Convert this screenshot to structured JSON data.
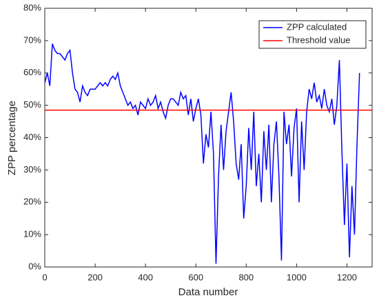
{
  "chart_data": {
    "type": "line",
    "xlabel": "Data number",
    "ylabel": "ZPP percentage",
    "xlim": [
      0,
      1300
    ],
    "xticks": [
      0,
      200,
      400,
      600,
      800,
      1000,
      1200
    ],
    "ylim": [
      0,
      80
    ],
    "yticks": [
      {
        "value": 0,
        "label": "0%"
      },
      {
        "value": 10,
        "label": "10%"
      },
      {
        "value": 20,
        "label": "20%"
      },
      {
        "value": 30,
        "label": "30%"
      },
      {
        "value": 40,
        "label": "40%"
      },
      {
        "value": 50,
        "label": "50%"
      },
      {
        "value": 60,
        "label": "60%"
      },
      {
        "value": 70,
        "label": "70%"
      },
      {
        "value": 80,
        "label": "80%"
      }
    ],
    "legend": "top-right",
    "series": [
      {
        "name": "ZPP calculated",
        "color": "#0000ff",
        "x": [
          0,
          10,
          20,
          30,
          40,
          50,
          60,
          70,
          80,
          90,
          100,
          110,
          120,
          130,
          140,
          150,
          160,
          170,
          180,
          190,
          200,
          210,
          220,
          230,
          240,
          250,
          260,
          270,
          280,
          290,
          300,
          310,
          320,
          330,
          340,
          350,
          360,
          370,
          380,
          390,
          400,
          410,
          420,
          430,
          440,
          450,
          460,
          470,
          480,
          490,
          500,
          510,
          520,
          530,
          540,
          550,
          560,
          570,
          580,
          590,
          600,
          610,
          620,
          630,
          640,
          650,
          660,
          670,
          680,
          690,
          700,
          710,
          720,
          730,
          740,
          750,
          760,
          770,
          780,
          790,
          800,
          810,
          820,
          830,
          840,
          850,
          860,
          870,
          880,
          890,
          900,
          910,
          920,
          930,
          940,
          950,
          960,
          970,
          980,
          990,
          1000,
          1010,
          1020,
          1030,
          1040,
          1050,
          1060,
          1070,
          1080,
          1090,
          1100,
          1110,
          1120,
          1130,
          1140,
          1150,
          1160,
          1170,
          1180,
          1190,
          1200,
          1210,
          1220,
          1230,
          1240,
          1250
        ],
        "values": [
          57,
          60,
          56,
          69,
          67,
          66,
          66,
          65,
          64,
          66,
          67,
          60,
          55,
          54,
          51,
          56,
          54,
          53,
          55,
          55,
          55,
          56,
          57,
          56,
          57,
          56,
          58,
          59,
          58,
          60,
          56,
          54,
          52,
          50,
          51,
          49,
          50,
          47,
          51,
          50,
          49,
          52,
          50,
          51,
          53,
          49,
          51,
          48,
          46,
          50,
          52,
          52,
          51,
          50,
          54,
          52,
          53,
          47,
          52,
          45,
          49,
          52,
          47,
          32,
          41,
          37,
          48,
          35,
          1,
          28,
          44,
          30,
          42,
          48,
          54,
          45,
          32,
          27,
          38,
          15,
          25,
          43,
          30,
          48,
          25,
          35,
          20,
          42,
          30,
          44,
          20,
          38,
          45,
          28,
          2,
          48,
          38,
          44,
          28,
          43,
          49,
          20,
          45,
          30,
          48,
          55,
          52,
          57,
          51,
          53,
          49,
          55,
          50,
          48,
          52,
          44,
          50,
          64,
          36,
          13,
          32,
          3,
          25,
          10,
          38,
          60
        ]
      },
      {
        "name": "Threshold value",
        "color": "#ff0000",
        "x": [
          0,
          1300
        ],
        "values": [
          48.5,
          48.5
        ]
      }
    ]
  }
}
